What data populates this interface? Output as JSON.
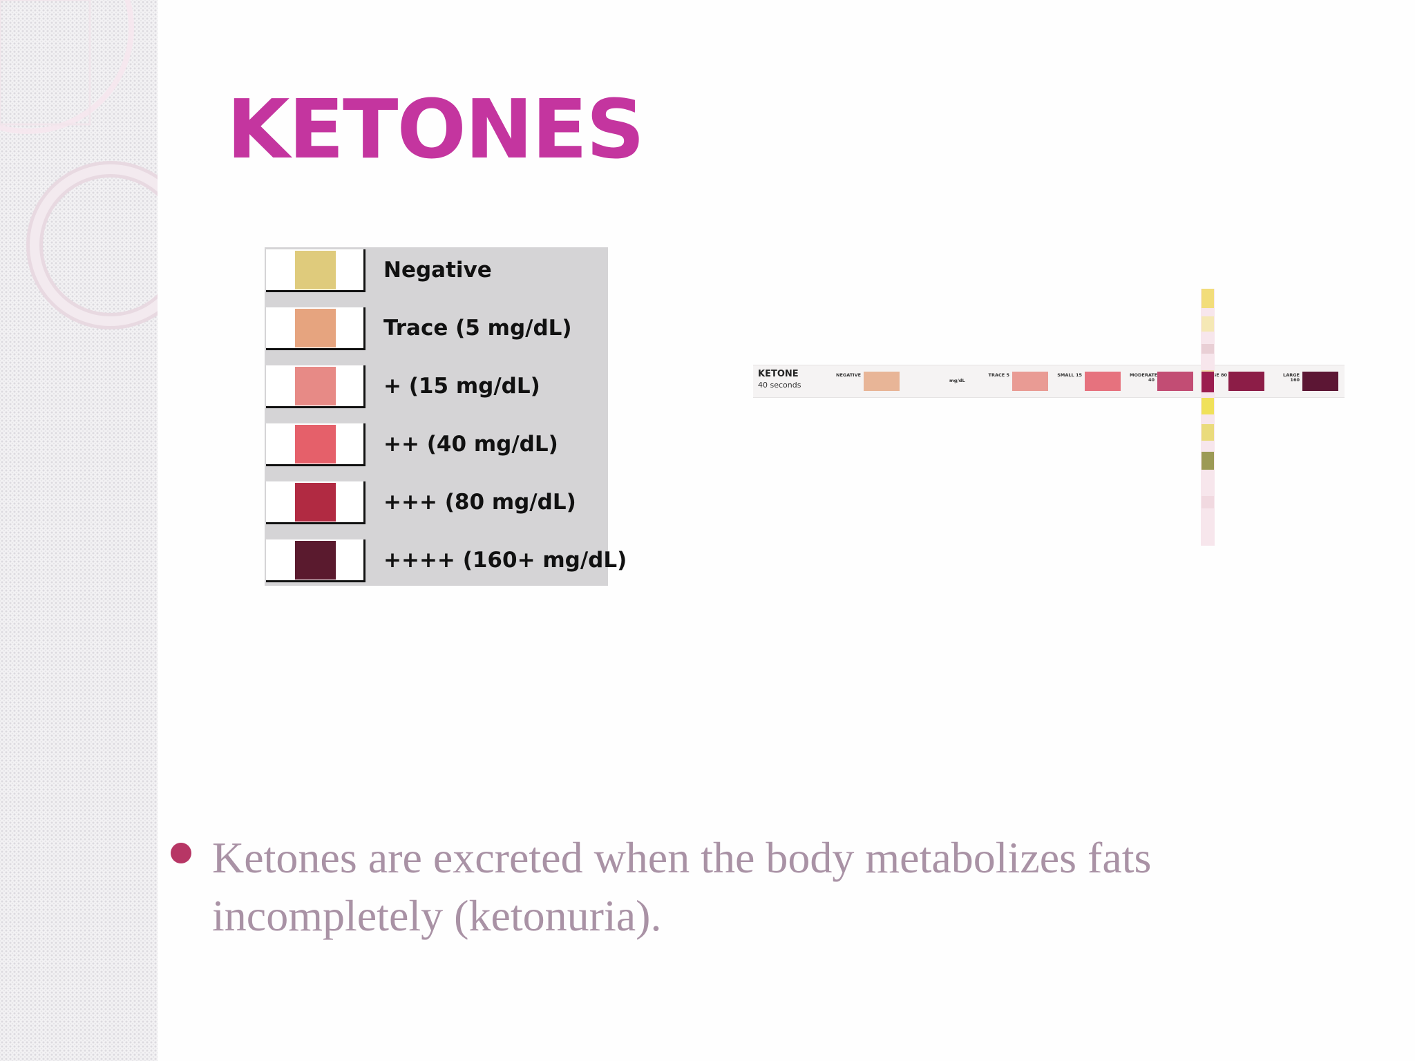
{
  "slide": {
    "title": "KETONES",
    "bullet": "Ketones are excreted when the body metabolizes fats incompletely (ketonuria)."
  },
  "color_chart": {
    "rows": [
      {
        "label": "Negative",
        "color": "#dfcb7c"
      },
      {
        "label": "Trace (5 mg/dL)",
        "color": "#e6a47f"
      },
      {
        "label": "+ (15 mg/dL)",
        "color": "#e78a86"
      },
      {
        "label": "++ (40 mg/dL)",
        "color": "#e5606a"
      },
      {
        "label": "+++ (80 mg/dL)",
        "color": "#b12a42"
      },
      {
        "label": "++++ (160+ mg/dL)",
        "color": "#5a1a2e"
      }
    ]
  },
  "test_strip": {
    "title": "KETONE",
    "subtitle": "40 seconds",
    "unit": "mg/dL",
    "pads": [
      {
        "label": "NEGATIVE",
        "color": "#e8b597"
      },
      {
        "label": "TRACE 5",
        "color": "#e99b94"
      },
      {
        "label": "SMALL 15",
        "color": "#e6727e"
      },
      {
        "label": "MODERATE 40",
        "color": "#c24d74"
      },
      {
        "label": "LARGE 80",
        "color": "#8c1d47"
      },
      {
        "label": "LARGE 160",
        "color": "#5c1634"
      }
    ],
    "vertical_pads": [
      "#f2dd7a",
      "#f5e8b5",
      "#e9cfd5",
      "#f1dca8",
      "#9b1d4f",
      "#f0e15a",
      "#eadb7c",
      "#9c9a55",
      "#f1d9e0"
    ]
  },
  "colors": {
    "title": "#c4359f",
    "bullet_dot": "#b73665",
    "bullet_text": "#a992a5",
    "chart_bg": "#d5d4d6"
  }
}
